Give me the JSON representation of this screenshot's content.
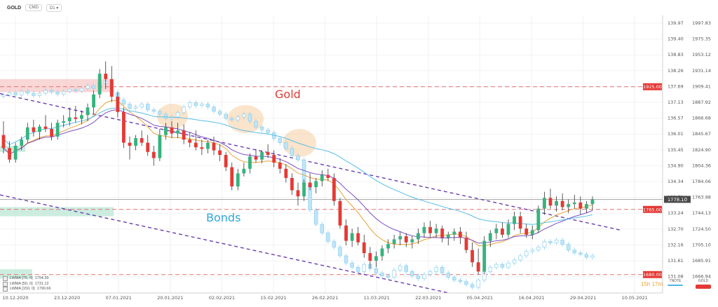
{
  "header": {
    "symbol": "GOLD",
    "badge": "CMD",
    "timeframe": "D1",
    "chevron": "chevron-down-icon"
  },
  "annotations": {
    "gold_label": "Gold",
    "bonds_label": "Bonds",
    "gold_color": "#e03c31",
    "bonds_color": "#2ea8df"
  },
  "indicators": [
    {
      "label": "LWMA [75, 0]",
      "value": "1754.39"
    },
    {
      "label": "LWMA [50, 0]",
      "value": "1731.12"
    },
    {
      "label": "LWMA [150, 0]",
      "value": "1790.66"
    }
  ],
  "timer": "15h 17m",
  "instrument_legend": [
    {
      "name": "TNOTE",
      "color": "#4fb6e8"
    },
    {
      "name": "GOLD",
      "color": "#e53935"
    }
  ],
  "chart_data": {
    "type": "candlestick",
    "x_ticks": [
      "10.12.2020",
      "23.12.2020",
      "07.01.2021",
      "20.01.2021",
      "02.02.2021",
      "15.02.2021",
      "26.02.2021",
      "11.03.2021",
      "22.03.2021",
      "05.04.2021",
      "16.04.2021",
      "29.04.2021",
      "10.05.2021"
    ],
    "left_axis": {
      "name": "Bonds",
      "ticks": [
        "139.97",
        "139.40",
        "138.83",
        "138.26",
        "137.69",
        "137.13",
        "136.57",
        "136.01",
        "135.45",
        "134.90",
        "134.34",
        "133.79",
        "133.24",
        "132.70",
        "132.16",
        "131.61",
        "131.08"
      ],
      "range": [
        130.8,
        140.5
      ]
    },
    "right_axis": {
      "name": "Gold",
      "ticks": [
        "1997.83",
        "1975.35",
        "1953.12",
        "1931.14",
        "1909.41",
        "1887.92",
        "1866.68",
        "1845.67",
        "1824.90",
        "1804.36",
        "1784.06",
        "1763.98",
        "1744.13",
        "1724.50",
        "1705.10",
        "1685.91",
        "1666.94"
      ],
      "range": [
        1656,
        2018
      ]
    },
    "price_lines": [
      {
        "label": "1925.00",
        "value": 1925
      },
      {
        "label": "1765.00",
        "value": 1765
      },
      {
        "label": "1680.00",
        "value": 1680
      }
    ],
    "current_price": {
      "label": "1778.10",
      "value": 1778.1
    },
    "gold_ohlc": [
      [
        1862,
        1880,
        1838,
        1845
      ],
      [
        1845,
        1854,
        1826,
        1830
      ],
      [
        1830,
        1852,
        1826,
        1848
      ],
      [
        1848,
        1860,
        1842,
        1856
      ],
      [
        1856,
        1878,
        1852,
        1872
      ],
      [
        1872,
        1882,
        1860,
        1866
      ],
      [
        1866,
        1876,
        1856,
        1873
      ],
      [
        1873,
        1888,
        1866,
        1870
      ],
      [
        1870,
        1878,
        1855,
        1860
      ],
      [
        1860,
        1882,
        1856,
        1878
      ],
      [
        1878,
        1888,
        1872,
        1880
      ],
      [
        1880,
        1898,
        1874,
        1885
      ],
      [
        1885,
        1900,
        1878,
        1883
      ],
      [
        1883,
        1894,
        1876,
        1888
      ],
      [
        1888,
        1903,
        1880,
        1898
      ],
      [
        1898,
        1920,
        1890,
        1915
      ],
      [
        1915,
        1948,
        1910,
        1942
      ],
      [
        1942,
        1958,
        1922,
        1935
      ],
      [
        1935,
        1952,
        1905,
        1912
      ],
      [
        1912,
        1918,
        1885,
        1892
      ],
      [
        1892,
        1898,
        1845,
        1852
      ],
      [
        1852,
        1860,
        1830,
        1848
      ],
      [
        1848,
        1862,
        1842,
        1858
      ],
      [
        1858,
        1868,
        1848,
        1852
      ],
      [
        1852,
        1862,
        1835,
        1840
      ],
      [
        1840,
        1848,
        1822,
        1832
      ],
      [
        1832,
        1870,
        1828,
        1862
      ],
      [
        1862,
        1878,
        1856,
        1872
      ],
      [
        1872,
        1880,
        1858,
        1864
      ],
      [
        1864,
        1878,
        1858,
        1868
      ],
      [
        1868,
        1876,
        1850,
        1856
      ],
      [
        1856,
        1866,
        1846,
        1852
      ],
      [
        1852,
        1868,
        1842,
        1846
      ],
      [
        1846,
        1856,
        1836,
        1844
      ],
      [
        1844,
        1856,
        1838,
        1852
      ],
      [
        1852,
        1860,
        1836,
        1842
      ],
      [
        1842,
        1850,
        1828,
        1836
      ],
      [
        1836,
        1840,
        1815,
        1820
      ],
      [
        1820,
        1826,
        1790,
        1795
      ],
      [
        1795,
        1818,
        1790,
        1812
      ],
      [
        1812,
        1826,
        1808,
        1818
      ],
      [
        1818,
        1838,
        1812,
        1834
      ],
      [
        1834,
        1844,
        1826,
        1830
      ],
      [
        1830,
        1842,
        1825,
        1840
      ],
      [
        1840,
        1850,
        1832,
        1836
      ],
      [
        1836,
        1842,
        1820,
        1826
      ],
      [
        1826,
        1832,
        1812,
        1818
      ],
      [
        1818,
        1824,
        1800,
        1806
      ],
      [
        1806,
        1812,
        1784,
        1790
      ],
      [
        1790,
        1800,
        1770,
        1782
      ],
      [
        1782,
        1804,
        1776,
        1800
      ],
      [
        1800,
        1812,
        1790,
        1794
      ],
      [
        1794,
        1806,
        1786,
        1802
      ],
      [
        1802,
        1816,
        1795,
        1810
      ],
      [
        1810,
        1818,
        1802,
        1806
      ],
      [
        1806,
        1812,
        1770,
        1776
      ],
      [
        1776,
        1780,
        1740,
        1744
      ],
      [
        1744,
        1752,
        1718,
        1724
      ],
      [
        1724,
        1740,
        1716,
        1734
      ],
      [
        1734,
        1742,
        1718,
        1722
      ],
      [
        1722,
        1732,
        1702,
        1708
      ],
      [
        1708,
        1716,
        1688,
        1698
      ],
      [
        1698,
        1710,
        1690,
        1704
      ],
      [
        1704,
        1718,
        1698,
        1714
      ],
      [
        1714,
        1726,
        1708,
        1720
      ],
      [
        1720,
        1732,
        1714,
        1726
      ],
      [
        1726,
        1736,
        1718,
        1730
      ],
      [
        1730,
        1734,
        1716,
        1722
      ],
      [
        1722,
        1730,
        1714,
        1726
      ],
      [
        1726,
        1740,
        1720,
        1734
      ],
      [
        1734,
        1748,
        1728,
        1742
      ],
      [
        1742,
        1750,
        1728,
        1734
      ],
      [
        1734,
        1746,
        1728,
        1740
      ],
      [
        1740,
        1744,
        1722,
        1728
      ],
      [
        1728,
        1736,
        1718,
        1732
      ],
      [
        1732,
        1740,
        1724,
        1736
      ],
      [
        1736,
        1742,
        1720,
        1728
      ],
      [
        1728,
        1736,
        1708,
        1712
      ],
      [
        1712,
        1722,
        1690,
        1696
      ],
      [
        1696,
        1714,
        1680,
        1684
      ],
      [
        1684,
        1730,
        1680,
        1724
      ],
      [
        1724,
        1738,
        1716,
        1734
      ],
      [
        1734,
        1746,
        1726,
        1740
      ],
      [
        1740,
        1748,
        1728,
        1732
      ],
      [
        1732,
        1752,
        1728,
        1746
      ],
      [
        1746,
        1762,
        1738,
        1756
      ],
      [
        1756,
        1762,
        1734,
        1740
      ],
      [
        1740,
        1746,
        1728,
        1732
      ],
      [
        1732,
        1744,
        1726,
        1738
      ],
      [
        1738,
        1770,
        1734,
        1766
      ],
      [
        1766,
        1788,
        1758,
        1780
      ],
      [
        1780,
        1792,
        1766,
        1770
      ],
      [
        1770,
        1782,
        1762,
        1776
      ],
      [
        1776,
        1786,
        1764,
        1768
      ],
      [
        1768,
        1778,
        1760,
        1772
      ],
      [
        1772,
        1784,
        1766,
        1774
      ],
      [
        1774,
        1782,
        1758,
        1766
      ],
      [
        1766,
        1776,
        1760,
        1772
      ],
      [
        1772,
        1782,
        1764,
        1778
      ]
    ],
    "bond_closes": [
      137.72,
      137.8,
      137.72,
      137.85,
      137.78,
      137.7,
      137.78,
      137.88,
      137.82,
      137.75,
      137.85,
      137.92,
      137.86,
      137.95,
      138.05,
      137.95,
      138.12,
      138.2,
      137.8,
      137.55,
      137.4,
      137.25,
      137.3,
      137.4,
      137.2,
      137.15,
      137.05,
      136.9,
      136.95,
      137.1,
      137.3,
      137.45,
      137.35,
      137.4,
      137.3,
      137.15,
      137.05,
      136.9,
      136.85,
      136.95,
      137.05,
      136.8,
      136.6,
      136.5,
      136.4,
      136.2,
      136.05,
      135.85,
      135.6,
      135.45,
      134.6,
      133.7,
      133.2,
      132.9,
      132.6,
      132.4,
      132.1,
      131.85,
      131.7,
      131.55,
      131.8,
      131.65,
      131.5,
      131.4,
      131.35,
      131.6,
      131.75,
      131.55,
      131.4,
      131.3,
      131.45,
      131.55,
      131.7,
      131.5,
      131.35,
      131.25,
      131.2,
      131.1,
      131.0,
      131.25,
      131.55,
      131.7,
      131.8,
      131.7,
      131.85,
      131.95,
      132.1,
      132.25,
      132.3,
      132.4,
      132.6,
      132.55,
      132.65,
      132.5,
      132.3,
      132.2,
      132.15,
      132.05,
      132.1
    ]
  }
}
